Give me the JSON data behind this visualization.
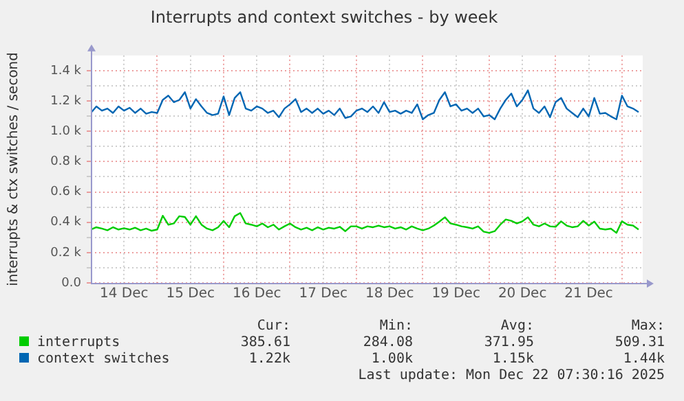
{
  "chart_data": {
    "type": "line",
    "title": "Interrupts and context switches - by week",
    "ylabel": "interrupts & ctx switches / second",
    "x": [
      "2025-12-14T00:00",
      "2025-12-14T02:00",
      "2025-12-14T04:00",
      "2025-12-14T06:00",
      "2025-12-14T08:00",
      "2025-12-14T10:00",
      "2025-12-14T12:00",
      "2025-12-14T14:00",
      "2025-12-14T16:00",
      "2025-12-14T18:00",
      "2025-12-14T20:00",
      "2025-12-14T22:00",
      "2025-12-15T00:00",
      "2025-12-15T02:00",
      "2025-12-15T04:00",
      "2025-12-15T06:00",
      "2025-12-15T08:00",
      "2025-12-15T10:00",
      "2025-12-15T12:00",
      "2025-12-15T14:00",
      "2025-12-15T16:00",
      "2025-12-15T18:00",
      "2025-12-15T20:00",
      "2025-12-15T22:00",
      "2025-12-16T00:00",
      "2025-12-16T02:00",
      "2025-12-16T04:00",
      "2025-12-16T06:00",
      "2025-12-16T08:00",
      "2025-12-16T10:00",
      "2025-12-16T12:00",
      "2025-12-16T14:00",
      "2025-12-16T16:00",
      "2025-12-16T18:00",
      "2025-12-16T20:00",
      "2025-12-16T22:00",
      "2025-12-17T00:00",
      "2025-12-17T02:00",
      "2025-12-17T04:00",
      "2025-12-17T06:00",
      "2025-12-17T08:00",
      "2025-12-17T10:00",
      "2025-12-17T12:00",
      "2025-12-17T14:00",
      "2025-12-17T16:00",
      "2025-12-17T18:00",
      "2025-12-17T20:00",
      "2025-12-17T22:00",
      "2025-12-18T00:00",
      "2025-12-18T02:00",
      "2025-12-18T04:00",
      "2025-12-18T06:00",
      "2025-12-18T08:00",
      "2025-12-18T10:00",
      "2025-12-18T12:00",
      "2025-12-18T14:00",
      "2025-12-18T16:00",
      "2025-12-18T18:00",
      "2025-12-18T20:00",
      "2025-12-18T22:00",
      "2025-12-19T00:00",
      "2025-12-19T02:00",
      "2025-12-19T04:00",
      "2025-12-19T06:00",
      "2025-12-19T08:00",
      "2025-12-19T10:00",
      "2025-12-19T12:00",
      "2025-12-19T14:00",
      "2025-12-19T16:00",
      "2025-12-19T18:00",
      "2025-12-19T20:00",
      "2025-12-19T22:00",
      "2025-12-20T00:00",
      "2025-12-20T02:00",
      "2025-12-20T04:00",
      "2025-12-20T06:00",
      "2025-12-20T08:00",
      "2025-12-20T10:00",
      "2025-12-20T12:00",
      "2025-12-20T14:00",
      "2025-12-20T16:00",
      "2025-12-20T18:00",
      "2025-12-20T20:00",
      "2025-12-20T22:00",
      "2025-12-21T00:00",
      "2025-12-21T02:00",
      "2025-12-21T04:00",
      "2025-12-21T06:00",
      "2025-12-21T08:00",
      "2025-12-21T10:00",
      "2025-12-21T12:00",
      "2025-12-21T14:00",
      "2025-12-21T16:00",
      "2025-12-21T18:00",
      "2025-12-21T20:00",
      "2025-12-21T22:00",
      "2025-12-22T00:00",
      "2025-12-22T02:00",
      "2025-12-22T04:00",
      "2025-12-22T06:00"
    ],
    "series": [
      {
        "name": "interrupts",
        "color": "#00cc00",
        "values": [
          352,
          367,
          358,
          347,
          367,
          352,
          361,
          352,
          364,
          347,
          358,
          344,
          352,
          443,
          384,
          392,
          440,
          435,
          384,
          440,
          384,
          358,
          347,
          367,
          409,
          367,
          440,
          461,
          392,
          384,
          373,
          392,
          367,
          384,
          352,
          373,
          392,
          367,
          352,
          364,
          347,
          367,
          352,
          364,
          358,
          370,
          341,
          373,
          373,
          358,
          373,
          367,
          378,
          367,
          373,
          358,
          367,
          352,
          373,
          358,
          347,
          358,
          378,
          404,
          433,
          392,
          384,
          373,
          367,
          358,
          373,
          338,
          330,
          341,
          384,
          418,
          409,
          392,
          406,
          433,
          384,
          373,
          392,
          373,
          370,
          406,
          378,
          367,
          373,
          409,
          378,
          404,
          358,
          352,
          358,
          330,
          406,
          384,
          378,
          352
        ]
      },
      {
        "name": "context switches",
        "color": "#0066b3",
        "values": [
          1121,
          1164,
          1136,
          1150,
          1121,
          1164,
          1136,
          1155,
          1121,
          1150,
          1116,
          1127,
          1121,
          1207,
          1235,
          1192,
          1207,
          1258,
          1150,
          1212,
          1164,
          1121,
          1107,
          1116,
          1230,
          1107,
          1220,
          1258,
          1150,
          1136,
          1164,
          1150,
          1121,
          1136,
          1093,
          1150,
          1178,
          1212,
          1127,
          1150,
          1121,
          1150,
          1116,
          1136,
          1107,
          1150,
          1088,
          1098,
          1136,
          1150,
          1127,
          1164,
          1121,
          1192,
          1127,
          1136,
          1116,
          1136,
          1121,
          1178,
          1079,
          1107,
          1121,
          1207,
          1258,
          1164,
          1178,
          1136,
          1150,
          1121,
          1150,
          1098,
          1107,
          1079,
          1150,
          1207,
          1249,
          1164,
          1207,
          1270,
          1150,
          1121,
          1164,
          1093,
          1192,
          1220,
          1150,
          1121,
          1093,
          1150,
          1098,
          1220,
          1116,
          1121,
          1098,
          1079,
          1235,
          1164,
          1150,
          1127
        ]
      }
    ],
    "xlim": [
      "2025-12-14T00:00",
      "2025-12-22T07:30"
    ],
    "xticks": [
      {
        "value": "2025-12-14T12:00",
        "label": "14 Dec"
      },
      {
        "value": "2025-12-15T00:00",
        "label": null
      },
      {
        "value": "2025-12-15T12:00",
        "label": "15 Dec"
      },
      {
        "value": "2025-12-16T00:00",
        "label": null
      },
      {
        "value": "2025-12-16T12:00",
        "label": "16 Dec"
      },
      {
        "value": "2025-12-17T00:00",
        "label": null
      },
      {
        "value": "2025-12-17T12:00",
        "label": "17 Dec"
      },
      {
        "value": "2025-12-18T00:00",
        "label": null
      },
      {
        "value": "2025-12-18T12:00",
        "label": "18 Dec"
      },
      {
        "value": "2025-12-19T00:00",
        "label": null
      },
      {
        "value": "2025-12-19T12:00",
        "label": "19 Dec"
      },
      {
        "value": "2025-12-20T00:00",
        "label": null
      },
      {
        "value": "2025-12-20T12:00",
        "label": "20 Dec"
      },
      {
        "value": "2025-12-21T00:00",
        "label": null
      },
      {
        "value": "2025-12-21T12:00",
        "label": "21 Dec"
      },
      {
        "value": "2025-12-22T00:00",
        "label": null
      }
    ],
    "ylim": [
      0,
      1500
    ],
    "yticks": [
      {
        "value": 0,
        "label": "0.0"
      },
      {
        "value": 100,
        "label": null
      },
      {
        "value": 200,
        "label": "0.2 k"
      },
      {
        "value": 300,
        "label": null
      },
      {
        "value": 400,
        "label": "0.4 k"
      },
      {
        "value": 500,
        "label": null
      },
      {
        "value": 600,
        "label": "0.6 k"
      },
      {
        "value": 700,
        "label": null
      },
      {
        "value": 800,
        "label": "0.8 k"
      },
      {
        "value": 900,
        "label": null
      },
      {
        "value": 1000,
        "label": "1.0 k"
      },
      {
        "value": 1100,
        "label": null
      },
      {
        "value": 1200,
        "label": "1.2 k"
      },
      {
        "value": 1300,
        "label": null
      },
      {
        "value": 1400,
        "label": "1.4 k"
      }
    ],
    "grid": true,
    "legend": "bottom",
    "marker": "none",
    "line_style": "solid",
    "annotations": [
      "Cur:",
      "Min:",
      "Avg:",
      "Max:",
      "385.61",
      "284.08",
      "371.95",
      "509.31",
      "1.22k",
      "1.00k",
      "1.15k",
      "1.44k",
      "Last update: Mon Dec 22 07:30:16 2025"
    ]
  }
}
